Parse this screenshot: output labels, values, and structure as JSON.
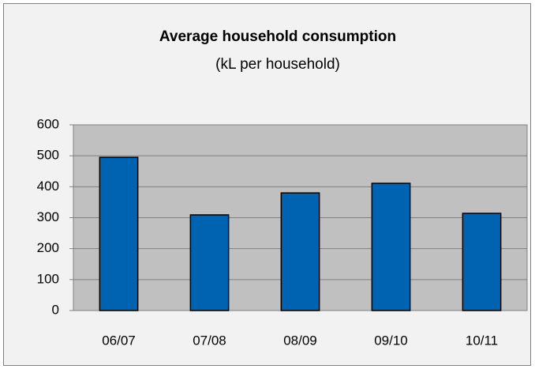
{
  "chart_data": {
    "type": "bar",
    "title": "Average household consumption",
    "subtitle": "(kL per household)",
    "categories": [
      "06/07",
      "07/08",
      "08/09",
      "09/10",
      "10/11"
    ],
    "values": [
      495,
      309,
      380,
      411,
      314
    ],
    "color": "#0063b1",
    "ylim": [
      0,
      600
    ],
    "yticks": [
      0,
      100,
      200,
      300,
      400,
      500,
      600
    ],
    "grid": true
  }
}
